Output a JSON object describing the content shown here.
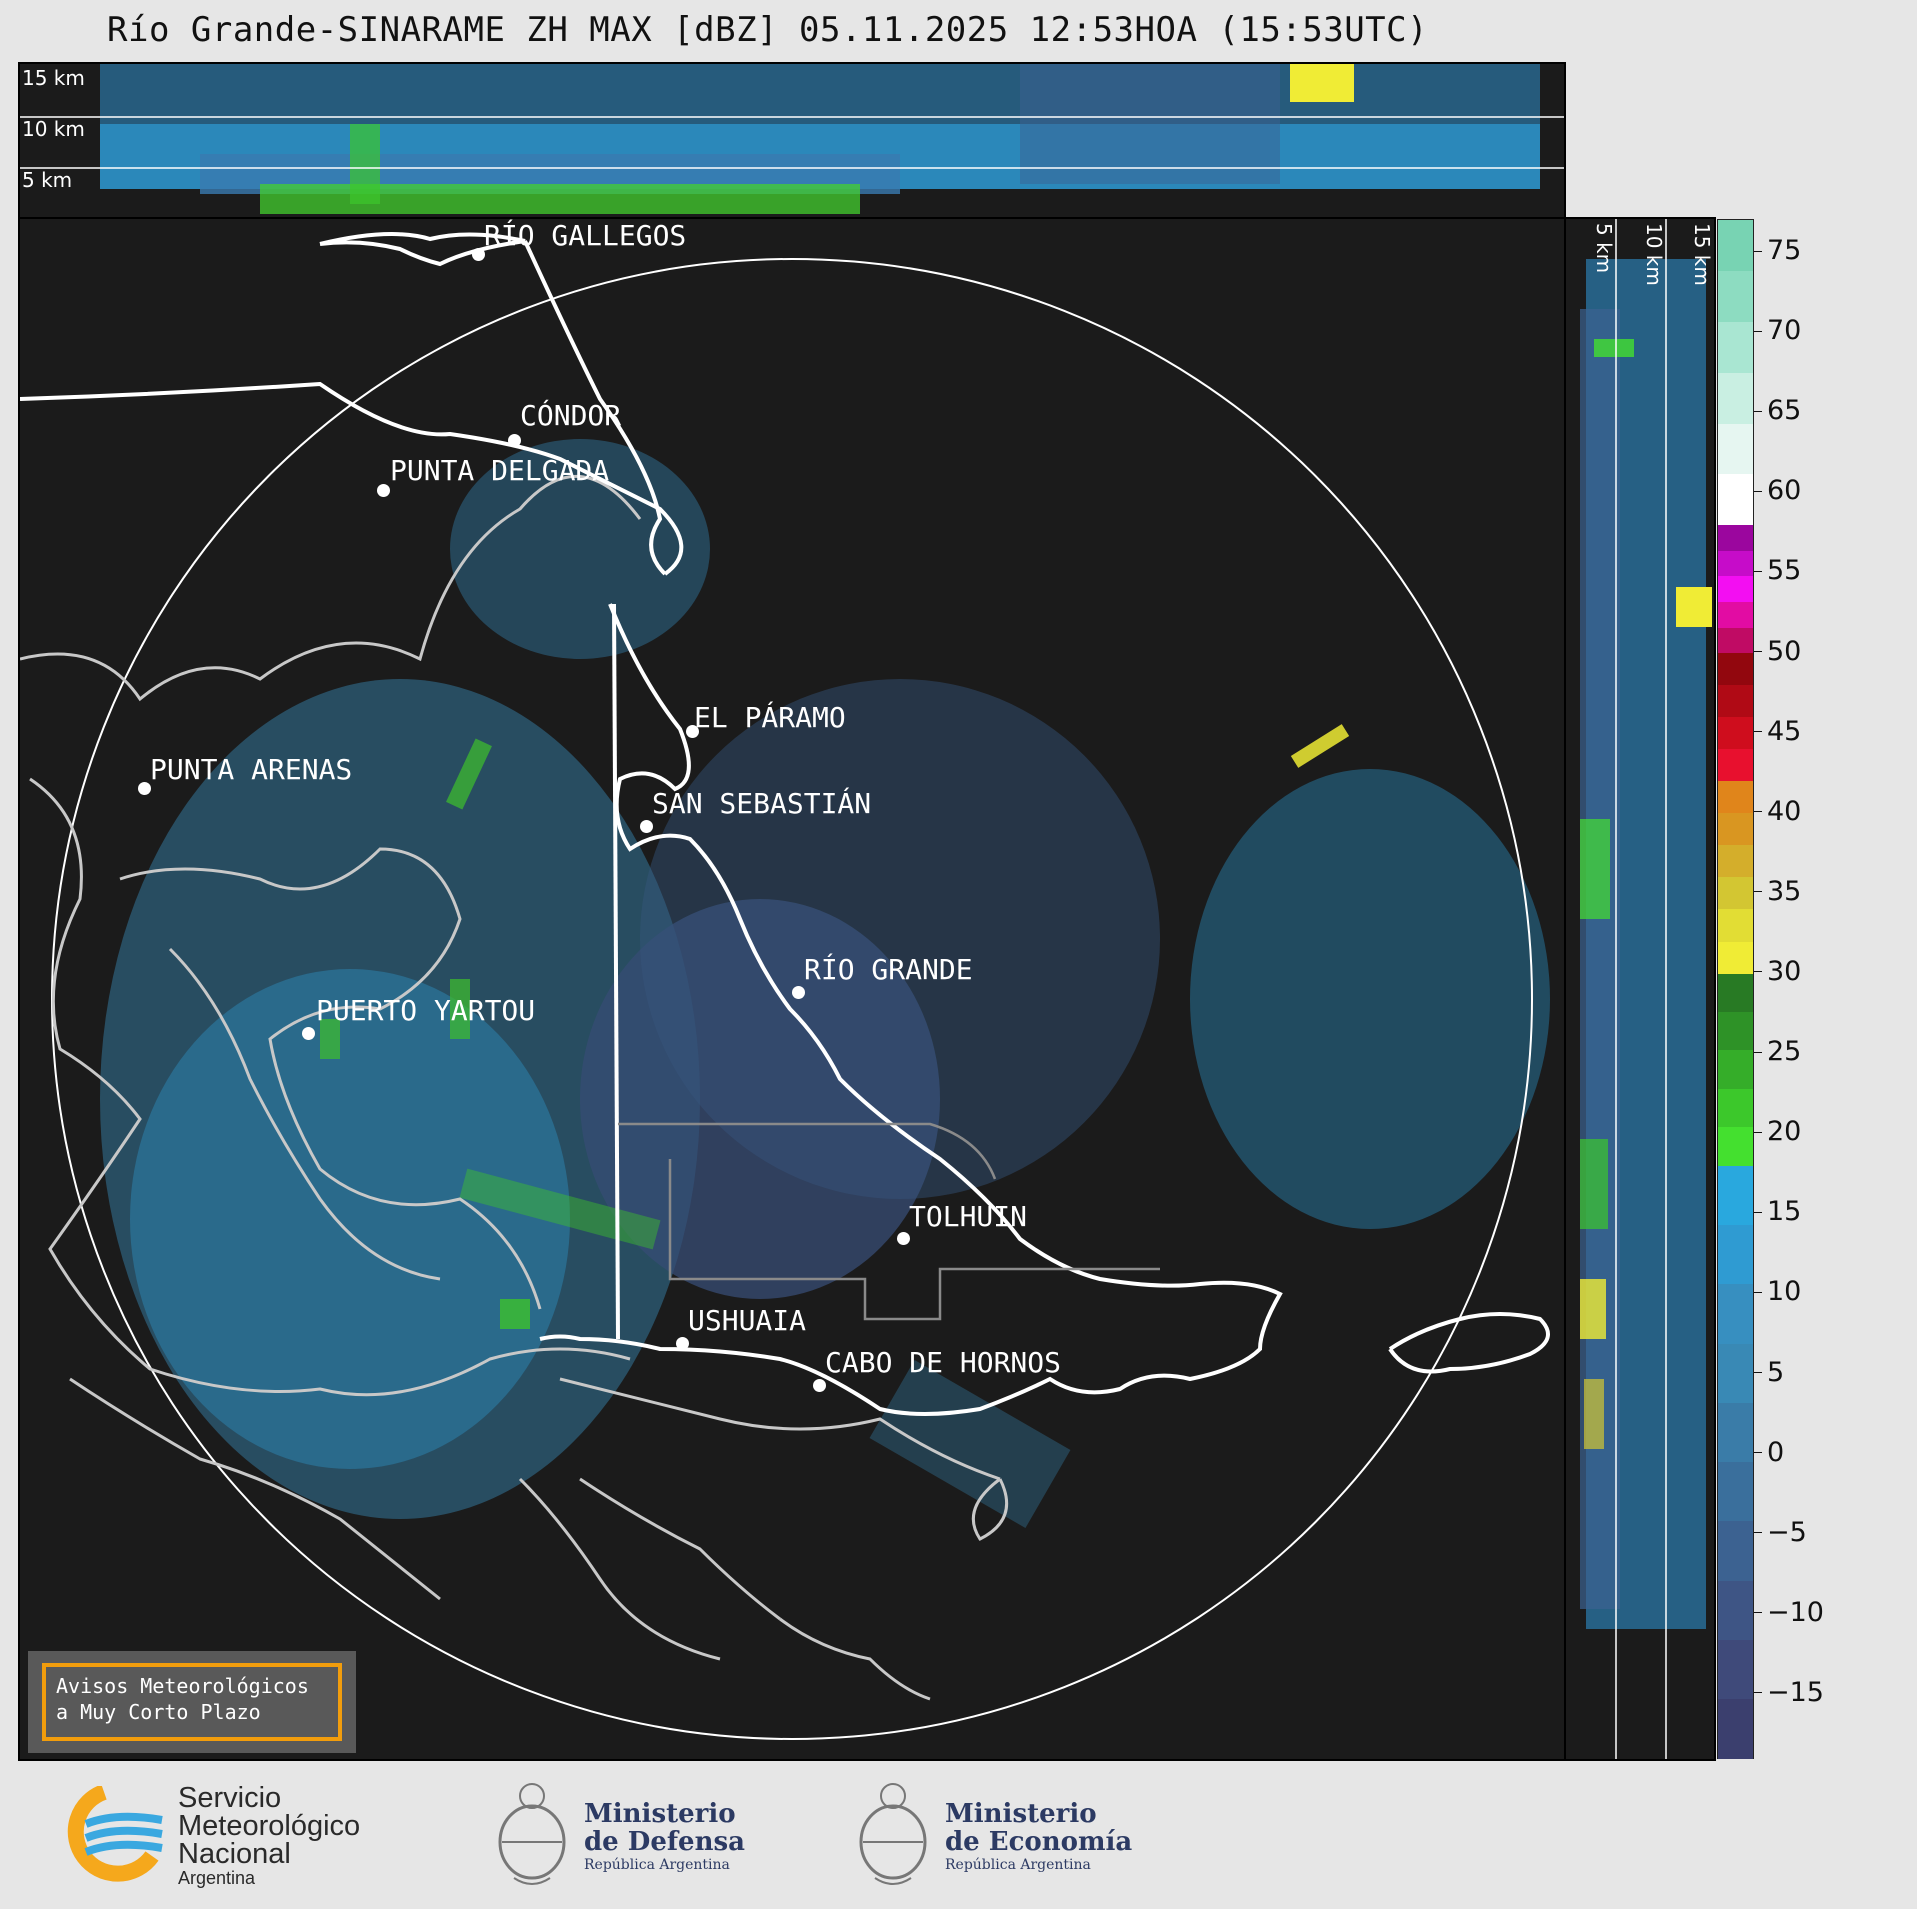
{
  "title": "Río Grande-SINARAME ZH MAX [dBZ] 05.11.2025 12:53HOA (15:53UTC)",
  "top_panel": {
    "altitude_labels": [
      "15 km",
      "10 km",
      "5 km"
    ]
  },
  "side_panel": {
    "altitude_labels": [
      "5 km",
      "10 km",
      "15 km"
    ]
  },
  "cities": [
    {
      "name": "RÍO GALLEGOS"
    },
    {
      "name": "CÓNDOR"
    },
    {
      "name": "PUNTA DELGADA"
    },
    {
      "name": "EL PÁRAMO"
    },
    {
      "name": "PUNTA ARENAS"
    },
    {
      "name": "SAN SEBASTIÁN"
    },
    {
      "name": "RÍO GRANDE"
    },
    {
      "name": "PUERTO YARTOU"
    },
    {
      "name": "TOLHUIN"
    },
    {
      "name": "USHUAIA"
    },
    {
      "name": "CABO DE HORNOS"
    }
  ],
  "colorbar": {
    "unit": "dBZ",
    "min": -19,
    "max": 77,
    "ticks": [
      "75",
      "70",
      "65",
      "60",
      "55",
      "50",
      "45",
      "40",
      "35",
      "30",
      "25",
      "20",
      "15",
      "10",
      "5",
      "0",
      "−5",
      "−10",
      "−15"
    ],
    "color_stops": [
      {
        "from": -19,
        "to": 18,
        "colors": [
          "#3b3f6e",
          "#3f4a7a",
          "#3e5585",
          "#3c6291",
          "#3a6f9c",
          "#3a7ca8",
          "#3989b5",
          "#378fc0",
          "#2f9bd2",
          "#29a8de"
        ]
      },
      {
        "from": 18,
        "to": 30,
        "colors": [
          "#44e02f",
          "#3cc82b",
          "#35ad29",
          "#2e9227",
          "#287a24"
        ]
      },
      {
        "from": 30,
        "to": 42,
        "colors": [
          "#f0ec35",
          "#e2dd34",
          "#d3c632",
          "#d4ae2b",
          "#d99621",
          "#e0851b"
        ]
      },
      {
        "from": 42,
        "to": 50,
        "colors": [
          "#e8102e",
          "#cf0d1d",
          "#b00a15",
          "#92070e"
        ]
      },
      {
        "from": 50,
        "to": 58,
        "colors": [
          "#c00b64",
          "#e20ca3",
          "#f30ef2",
          "#c60cc9",
          "#9b069e"
        ]
      },
      {
        "from": 58,
        "to": 77,
        "colors": [
          "#ffffff",
          "#e6f6f1",
          "#c9efe2",
          "#a9e6d2",
          "#8ddcc1",
          "#78d3b3"
        ]
      }
    ]
  },
  "aviso": {
    "line1": "Avisos Meteorológicos",
    "line2": "a Muy Corto Plazo"
  },
  "logos": {
    "smn": {
      "line1": "Servicio",
      "line2": "Meteorológico",
      "line3": "Nacional",
      "line4": "Argentina"
    },
    "defensa": {
      "line1": "Ministerio",
      "line2": "de Defensa",
      "line3": "República Argentina"
    },
    "economia": {
      "line1": "Ministerio",
      "line2": "de Economía",
      "line3": "República Argentina"
    }
  }
}
